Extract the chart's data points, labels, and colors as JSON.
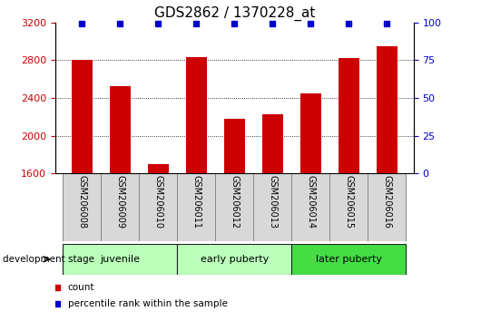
{
  "title": "GDS2862 / 1370228_at",
  "samples": [
    "GSM206008",
    "GSM206009",
    "GSM206010",
    "GSM206011",
    "GSM206012",
    "GSM206013",
    "GSM206014",
    "GSM206015",
    "GSM206016"
  ],
  "counts": [
    2800,
    2520,
    1700,
    2830,
    2175,
    2230,
    2450,
    2820,
    2950
  ],
  "percentile_values": [
    99,
    99,
    99,
    99,
    99,
    99,
    99,
    99,
    99
  ],
  "ylim_left": [
    1600,
    3200
  ],
  "ylim_right": [
    0,
    100
  ],
  "yticks_left": [
    1600,
    2000,
    2400,
    2800,
    3200
  ],
  "yticks_right": [
    0,
    25,
    50,
    75,
    100
  ],
  "bar_color": "#cc0000",
  "dot_color": "#0000cc",
  "grid_yticks": [
    2000,
    2400,
    2800
  ],
  "group_labels": [
    "juvenile",
    "early puberty",
    "later puberty"
  ],
  "group_starts": [
    0,
    3,
    6
  ],
  "group_ends": [
    3,
    6,
    9
  ],
  "group_colors": [
    "#bbffbb",
    "#bbffbb",
    "#44dd44"
  ],
  "legend_items": [
    {
      "label": "count",
      "color": "#cc0000"
    },
    {
      "label": "percentile rank within the sample",
      "color": "#0000cc"
    }
  ],
  "dev_stage_label": "development stage",
  "title_fontsize": 11,
  "tick_fontsize": 8,
  "label_fontsize": 8,
  "group_fontsize": 8
}
